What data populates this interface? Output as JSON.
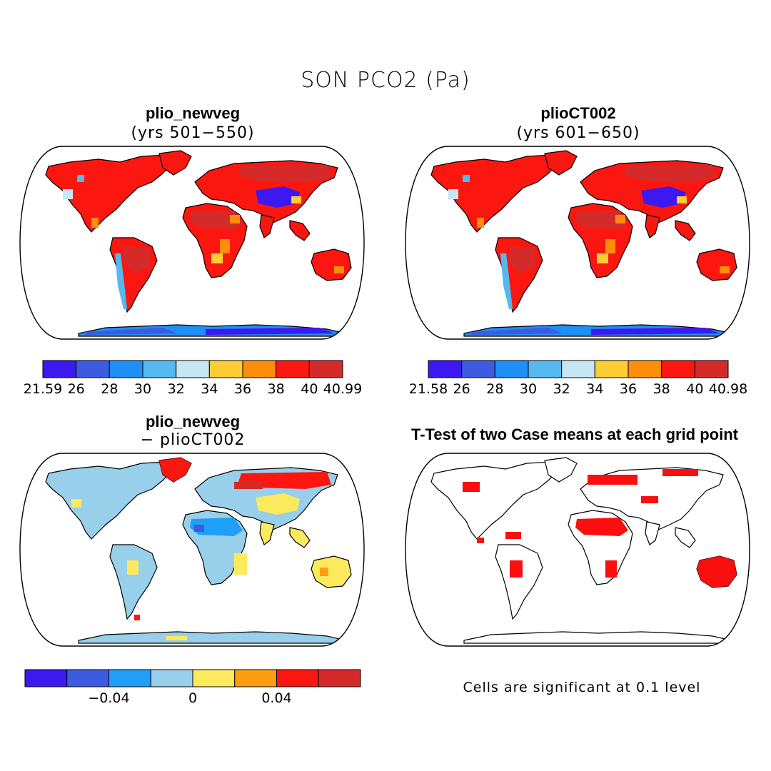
{
  "figure": {
    "title": "SON PCO2 (Pa)",
    "note": "Cells are significant at 0.1 level"
  },
  "panels": [
    {
      "title": "plio_newveg",
      "subtitle": "(yrs 501−550)"
    },
    {
      "title": "plioCT002",
      "subtitle": "(yrs 601−650)"
    },
    {
      "title": "plio_newveg",
      "subtitle": "− plioCT002"
    },
    {
      "title": "T-Test of two Case means at each grid point",
      "subtitle": ""
    }
  ],
  "colors": {
    "abs_scale": [
      "#3b19f0",
      "#3c5be0",
      "#1f8ef5",
      "#55b8ee",
      "#c6e6f2",
      "#fdcd35",
      "#fd8d0a",
      "#fb1710",
      "#d42b2a"
    ],
    "diff_scale": [
      "#3b19f0",
      "#3c5be0",
      "#1f9ff5",
      "#98cfea",
      "#fde95e",
      "#fd9d10",
      "#fb1710",
      "#d42b2a"
    ],
    "significant": "#fb0e0e"
  },
  "chart_data": [
    {
      "type": "heatmap",
      "title": "plio_newveg (yrs 501−550)",
      "colorbar": {
        "min_label": "21.59",
        "max_label": "40.99",
        "tick_labels": [
          "26",
          "28",
          "30",
          "32",
          "34",
          "36",
          "38",
          "40"
        ],
        "levels": [
          21.59,
          26,
          28,
          30,
          32,
          34,
          36,
          38,
          40,
          40.99
        ]
      }
    },
    {
      "type": "heatmap",
      "title": "plioCT002 (yrs 601−650)",
      "colorbar": {
        "min_label": "21.58",
        "max_label": "40.98",
        "tick_labels": [
          "26",
          "28",
          "30",
          "32",
          "34",
          "36",
          "38",
          "40"
        ],
        "levels": [
          21.58,
          26,
          28,
          30,
          32,
          34,
          36,
          38,
          40,
          40.98
        ]
      }
    },
    {
      "type": "heatmap",
      "title": "plio_newveg − plioCT002",
      "colorbar": {
        "tick_labels": [
          "−0.04",
          "0",
          "0.04"
        ],
        "levels": [
          -0.08,
          -0.06,
          -0.04,
          -0.02,
          0,
          0.02,
          0.04,
          0.06,
          0.08
        ]
      }
    },
    {
      "type": "heatmap",
      "title": "T-Test of two Case means at each grid point",
      "significance_level": 0.1
    }
  ]
}
